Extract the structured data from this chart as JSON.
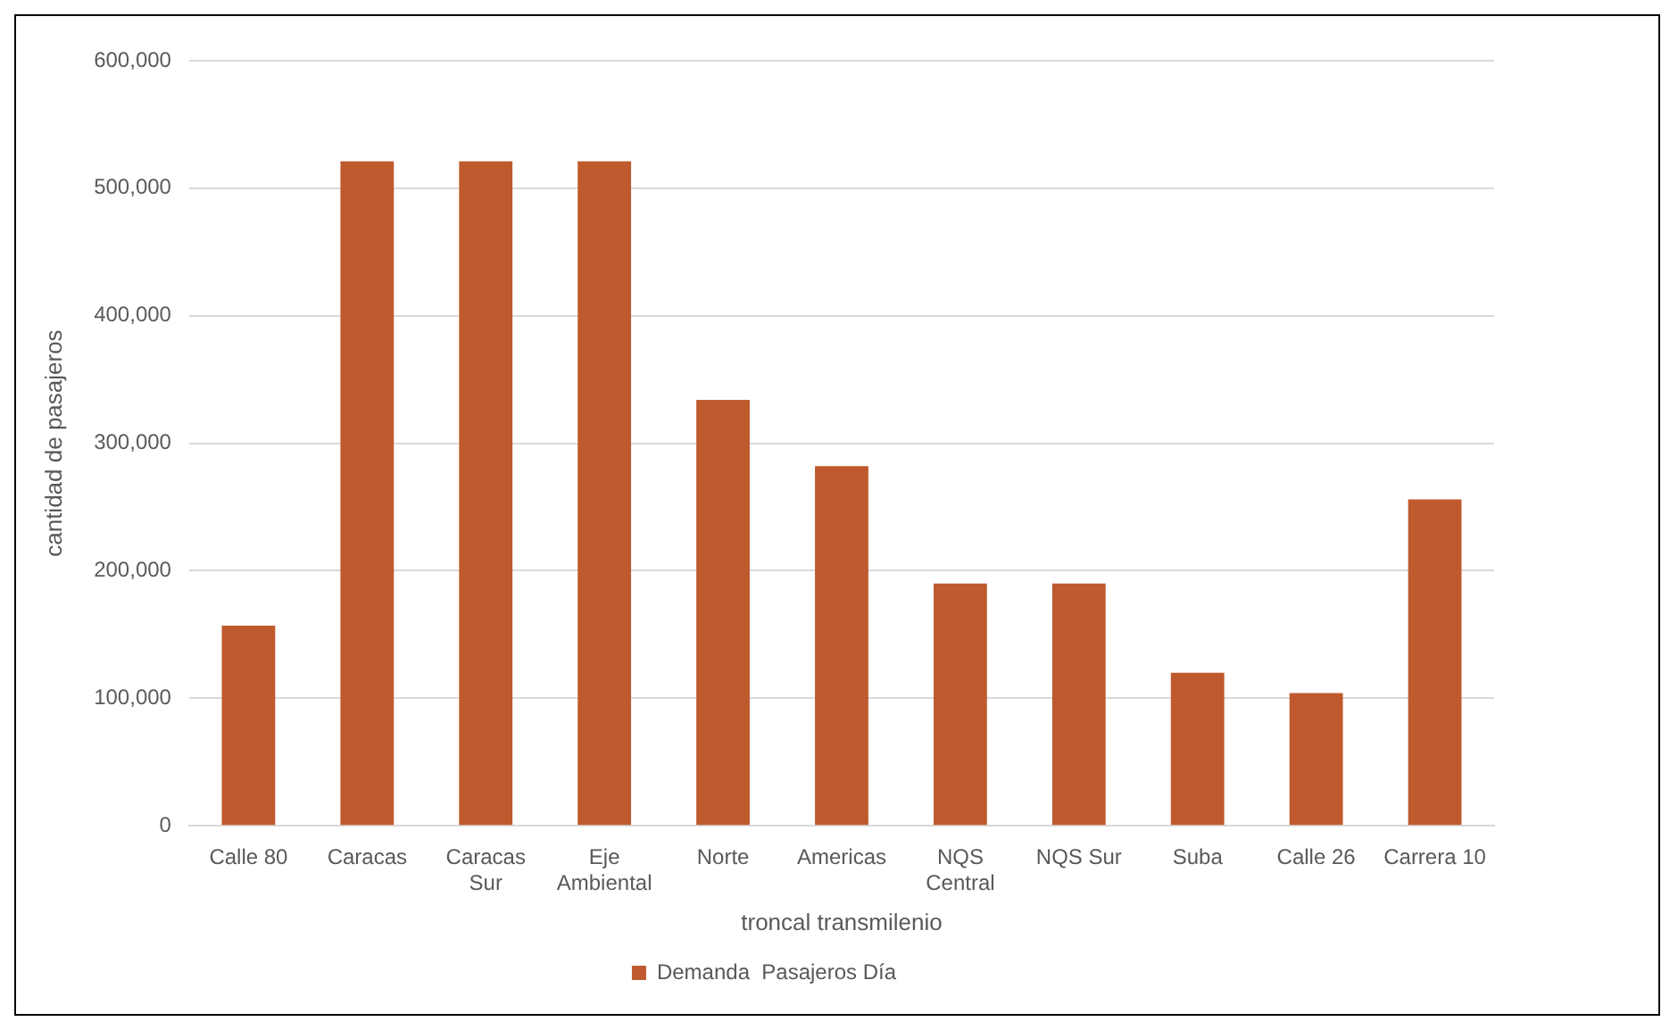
{
  "chart_data": {
    "type": "bar",
    "xlabel": "troncal transmilenio",
    "ylabel": "cantidad de pasajeros",
    "categories": [
      "Calle 80",
      "Caracas",
      "Caracas\nSur",
      "Eje\nAmbiental",
      "Norte",
      "Americas",
      "NQS\nCentral",
      "NQS Sur",
      "Suba",
      "Calle 26",
      "Carrera 10"
    ],
    "series": [
      {
        "name": "Demanda  Pasajeros Día",
        "color": "#bf5a2e",
        "values": [
          157000,
          521000,
          521000,
          521000,
          334000,
          282000,
          190000,
          190000,
          120000,
          104000,
          256000
        ]
      }
    ],
    "ylim": [
      0,
      600000
    ],
    "yticks": [
      0,
      {
        "value": 100000,
        "label": "100,000"
      },
      {
        "value": 200000,
        "label": "200,000"
      },
      {
        "value": 300000,
        "label": "300,000"
      },
      {
        "value": 400000,
        "label": "400,000"
      },
      {
        "value": 500000,
        "label": "500,000"
      },
      {
        "value": 600000,
        "label": "600,000"
      }
    ],
    "grid": "y",
    "legend": "bottom"
  }
}
